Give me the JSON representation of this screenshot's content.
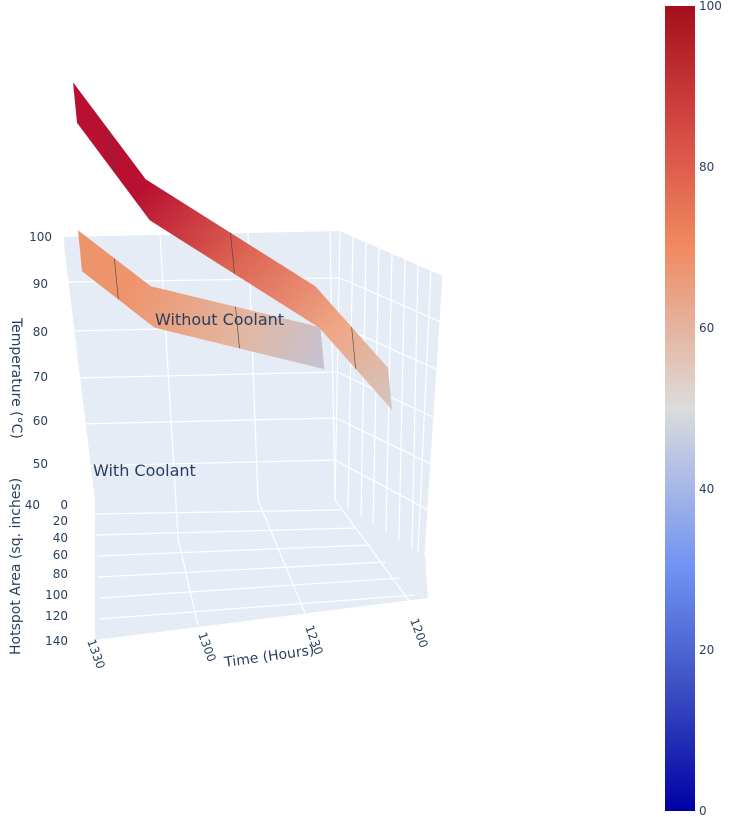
{
  "chart_data": {
    "type": "surface",
    "axes": {
      "x": {
        "label": "Time (Hours)",
        "ticks": [
          "1200",
          "1230",
          "1300",
          "1330"
        ]
      },
      "y": {
        "label": "Hotspot Area (sq. inches)",
        "ticks": [
          "0",
          "20",
          "40",
          "60",
          "80",
          "100",
          "120",
          "140"
        ]
      },
      "z": {
        "label": "Temperature (°C)",
        "ticks": [
          "40",
          "50",
          "60",
          "70",
          "80",
          "90",
          "100"
        ]
      }
    },
    "series": [
      {
        "name": "Without Coolant",
        "time": [
          1200,
          1230,
          1300,
          1330
        ],
        "temperature_start": [
          41,
          57,
          78,
          97
        ],
        "temperature_end": [
          44,
          60,
          80,
          89
        ]
      },
      {
        "name": "With Coolant",
        "time": [
          1230,
          1300,
          1330
        ],
        "temperature_start": [
          49,
          57,
          68
        ],
        "temperature_end": [
          49,
          53,
          64
        ]
      }
    ],
    "annotations": [
      "Without Coolant",
      "With Coolant"
    ],
    "colorbar": {
      "colorscale": "coolwarm",
      "range": [
        0,
        100
      ],
      "ticks": [
        "0",
        "20",
        "40",
        "60",
        "80",
        "100"
      ]
    }
  }
}
